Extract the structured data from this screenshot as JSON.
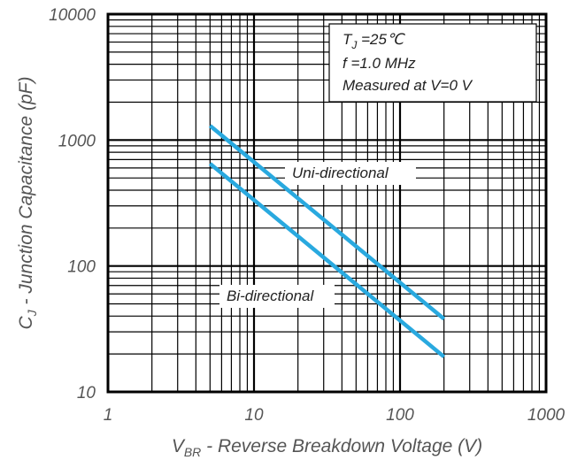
{
  "chart_data": {
    "type": "line",
    "xlabel": {
      "main": "V",
      "sub": "BR",
      "rest": " - Reverse Breakdown Voltage (V)"
    },
    "ylabel": {
      "main": "C",
      "sub": "J",
      "rest": " - Junction Capacitance (pF)"
    },
    "x_scale": "log",
    "y_scale": "log",
    "xlim": [
      1,
      1000
    ],
    "ylim": [
      10,
      10000
    ],
    "x_ticks": [
      "1",
      "10",
      "100",
      "1000"
    ],
    "y_ticks": [
      "10",
      "100",
      "1000",
      "10000"
    ],
    "grid": true,
    "annotation_lines": [
      {
        "main": "T",
        "sub": "J",
        "rest": " =25℃"
      },
      {
        "main": "f =1.0 MHz",
        "sub": "",
        "rest": ""
      },
      {
        "main": "Measured at V=0 V",
        "sub": "",
        "rest": ""
      }
    ],
    "series": [
      {
        "name": "Uni-directional",
        "x": [
          5,
          200
        ],
        "y": [
          1300,
          38
        ]
      },
      {
        "name": "Bi-directional",
        "x": [
          5,
          200
        ],
        "y": [
          650,
          19
        ]
      }
    ],
    "line_color": "#29a9df"
  }
}
